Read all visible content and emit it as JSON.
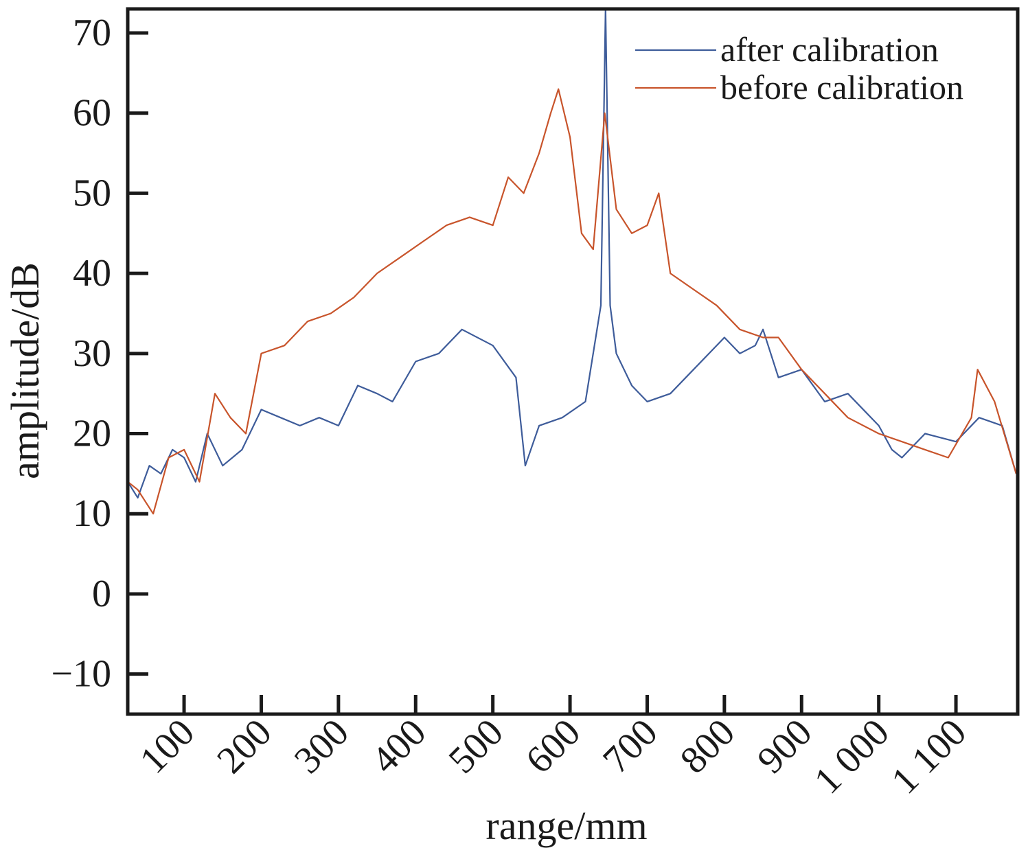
{
  "chart_data": {
    "type": "line",
    "title": "",
    "xlabel": "range/mm",
    "ylabel": "amplitude/dB",
    "xlim": [
      27,
      1180
    ],
    "ylim": [
      -15,
      73
    ],
    "xticks": [
      100,
      200,
      300,
      400,
      500,
      600,
      700,
      800,
      900,
      1000,
      1100
    ],
    "xtick_labels": [
      "100",
      "200",
      "300",
      "400",
      "500",
      "600",
      "700",
      "800",
      "900",
      "1 000",
      "1 100"
    ],
    "yticks": [
      -10,
      0,
      10,
      20,
      30,
      40,
      50,
      60,
      70
    ],
    "ytick_labels": [
      "−10",
      "0",
      "10",
      "20",
      "30",
      "40",
      "50",
      "60",
      "70"
    ],
    "grid": false,
    "legend_position": "top-right",
    "series": [
      {
        "name": "after calibration",
        "color": "#3e5c9a",
        "x": [
          27,
          40,
          55,
          70,
          85,
          100,
          115,
          130,
          150,
          175,
          200,
          225,
          250,
          275,
          300,
          325,
          350,
          370,
          400,
          430,
          460,
          500,
          530,
          542,
          560,
          590,
          620,
          630,
          640,
          646,
          652,
          660,
          680,
          700,
          730,
          760,
          800,
          820,
          840,
          850,
          870,
          900,
          930,
          960,
          1000,
          1017,
          1030,
          1060,
          1100,
          1130,
          1160,
          1178
        ],
        "y": [
          14,
          12,
          16,
          15,
          18,
          17,
          14,
          20,
          16,
          18,
          23,
          22,
          21,
          22,
          21,
          26,
          25,
          24,
          29,
          30,
          33,
          31,
          27,
          16,
          21,
          22,
          24,
          30,
          36,
          73,
          36,
          30,
          26,
          24,
          25,
          28,
          32,
          30,
          31,
          33,
          27,
          28,
          24,
          25,
          21,
          18,
          17,
          20,
          19,
          22,
          21,
          15
        ]
      },
      {
        "name": "before calibration",
        "color": "#c8542b",
        "x": [
          27,
          40,
          60,
          80,
          100,
          120,
          140,
          160,
          180,
          200,
          230,
          260,
          290,
          320,
          350,
          380,
          410,
          440,
          470,
          500,
          520,
          540,
          560,
          575,
          585,
          600,
          615,
          630,
          645,
          660,
          680,
          700,
          715,
          730,
          760,
          790,
          820,
          850,
          870,
          900,
          930,
          960,
          1000,
          1030,
          1060,
          1090,
          1120,
          1128,
          1150,
          1178
        ],
        "y": [
          14,
          13,
          10,
          17,
          18,
          14,
          25,
          22,
          20,
          30,
          31,
          34,
          35,
          37,
          40,
          42,
          44,
          46,
          47,
          46,
          52,
          50,
          55,
          60,
          63,
          57,
          45,
          43,
          60,
          48,
          45,
          46,
          50,
          40,
          38,
          36,
          33,
          32,
          32,
          28,
          25,
          22,
          20,
          19,
          18,
          17,
          22,
          28,
          24,
          15
        ]
      }
    ]
  }
}
